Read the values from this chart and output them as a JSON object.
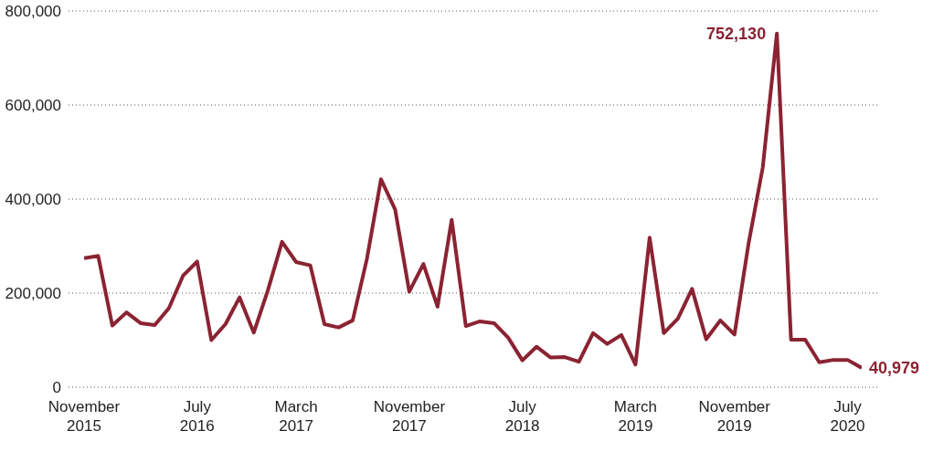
{
  "chart_data": {
    "type": "line",
    "categories": [
      "November 2015",
      null,
      null,
      null,
      null,
      null,
      null,
      null,
      "July 2016",
      null,
      null,
      null,
      null,
      null,
      null,
      "March 2017",
      null,
      null,
      null,
      null,
      null,
      null,
      null,
      "November 2017",
      null,
      null,
      null,
      null,
      null,
      null,
      null,
      "July 2018",
      null,
      null,
      null,
      null,
      null,
      null,
      null,
      "March 2019",
      null,
      null,
      null,
      null,
      null,
      null,
      "November 2019",
      null,
      null,
      null,
      null,
      null,
      null,
      null,
      "July 2020",
      null
    ],
    "values": [
      274000,
      279000,
      131000,
      159000,
      136000,
      132000,
      168000,
      237000,
      267000,
      100000,
      134000,
      191000,
      116000,
      206000,
      309000,
      266000,
      259000,
      134000,
      127000,
      142000,
      272000,
      442000,
      378000,
      203000,
      262000,
      171000,
      356000,
      130000,
      140000,
      136000,
      105000,
      57000,
      86000,
      63000,
      64000,
      54000,
      115000,
      92000,
      111000,
      48000,
      318000,
      115000,
      146000,
      209000,
      102000,
      142000,
      112000,
      306000,
      467000,
      752130,
      101000,
      101000,
      53000,
      58000,
      58000,
      40979
    ],
    "value_labels": [
      null,
      null,
      null,
      null,
      null,
      null,
      null,
      null,
      null,
      null,
      null,
      null,
      null,
      null,
      null,
      null,
      null,
      null,
      null,
      null,
      null,
      null,
      null,
      null,
      null,
      null,
      null,
      null,
      null,
      null,
      null,
      null,
      null,
      null,
      null,
      null,
      null,
      null,
      null,
      null,
      null,
      null,
      null,
      null,
      null,
      null,
      null,
      null,
      null,
      "752,130",
      null,
      null,
      null,
      null,
      null,
      "40,979"
    ],
    "color": "#8b2332",
    "ylim": [
      0,
      800000
    ],
    "yticks": [
      0,
      {
        "value": 200000,
        "label": "200,000"
      },
      {
        "value": 400000,
        "label": "400,000"
      },
      {
        "value": 600000,
        "label": "600,000"
      },
      {
        "value": 800000,
        "label": "800,000"
      }
    ],
    "grid": "y"
  }
}
